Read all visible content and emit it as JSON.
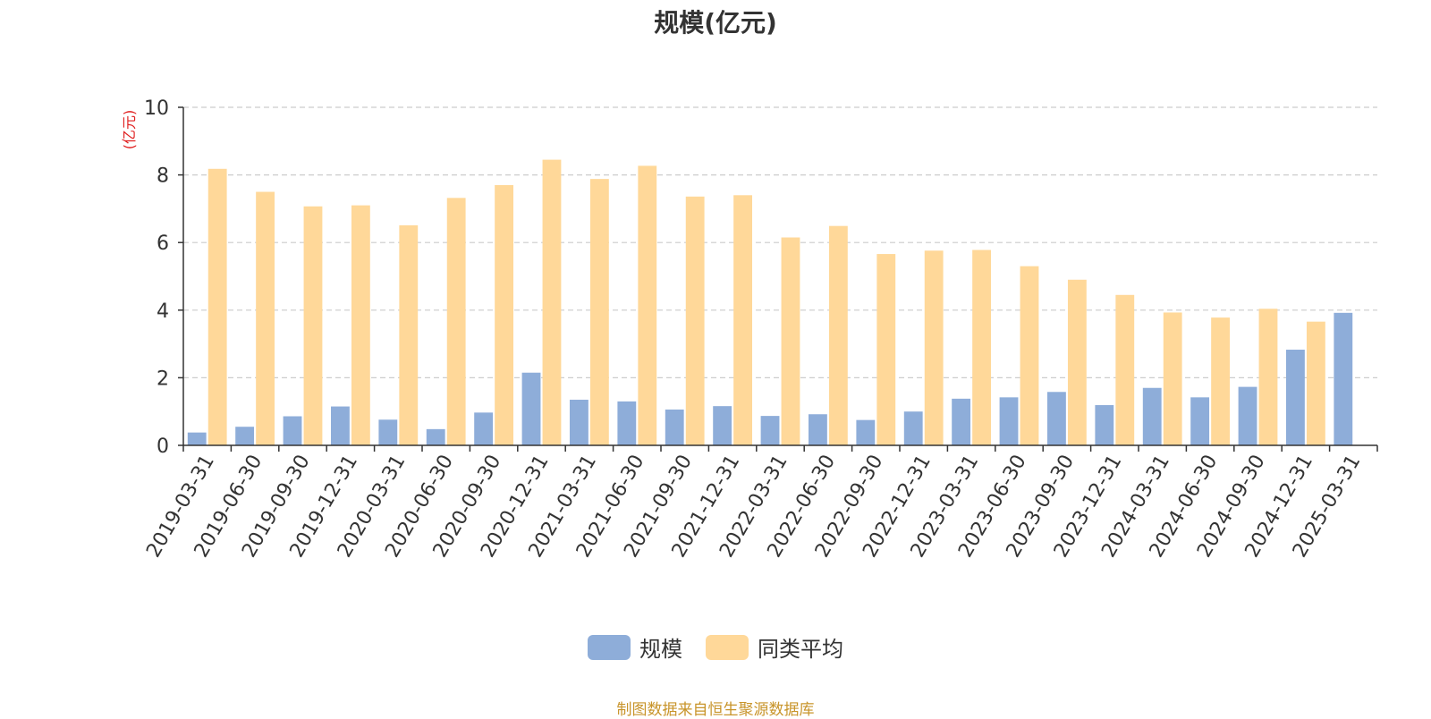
{
  "chart_data": {
    "type": "bar",
    "title": "规模(亿元)",
    "ylabel": "(亿元)",
    "xlabel": "",
    "ylim": [
      0,
      10
    ],
    "yticks": [
      0,
      2,
      4,
      6,
      8,
      10
    ],
    "grid": "horizontal-dashed",
    "legend_position": "bottom",
    "categories": [
      "2019-03-31",
      "2019-06-30",
      "2019-09-30",
      "2019-12-31",
      "2020-03-31",
      "2020-06-30",
      "2020-09-30",
      "2020-12-31",
      "2021-03-31",
      "2021-06-30",
      "2021-09-30",
      "2021-12-31",
      "2022-03-31",
      "2022-06-30",
      "2022-09-30",
      "2022-12-31",
      "2023-03-31",
      "2023-06-30",
      "2023-09-30",
      "2023-12-31",
      "2024-03-31",
      "2024-06-30",
      "2024-09-30",
      "2024-12-31",
      "2025-03-31"
    ],
    "series": [
      {
        "name": "规模",
        "color": "#8eadd9",
        "values": [
          0.38,
          0.55,
          0.86,
          1.15,
          0.76,
          0.48,
          0.97,
          2.15,
          1.35,
          1.3,
          1.06,
          1.16,
          0.87,
          0.92,
          0.75,
          1.0,
          1.38,
          1.42,
          1.58,
          1.19,
          1.7,
          1.42,
          1.73,
          2.83,
          3.92
        ]
      },
      {
        "name": "同类平均",
        "color": "#ffd899",
        "values": [
          8.18,
          7.5,
          7.07,
          7.1,
          6.51,
          7.32,
          7.7,
          8.45,
          7.88,
          8.27,
          7.36,
          7.4,
          6.15,
          6.49,
          5.66,
          5.76,
          5.78,
          5.3,
          4.9,
          4.45,
          3.93,
          3.78,
          4.04,
          3.66,
          null
        ]
      }
    ]
  },
  "footer": {
    "source": "制图数据来自恒生聚源数据库",
    "source_color": "#c8942a"
  },
  "colors": {
    "axis": "#333333",
    "grid": "#cccccc",
    "ylabel": "#e02020"
  }
}
